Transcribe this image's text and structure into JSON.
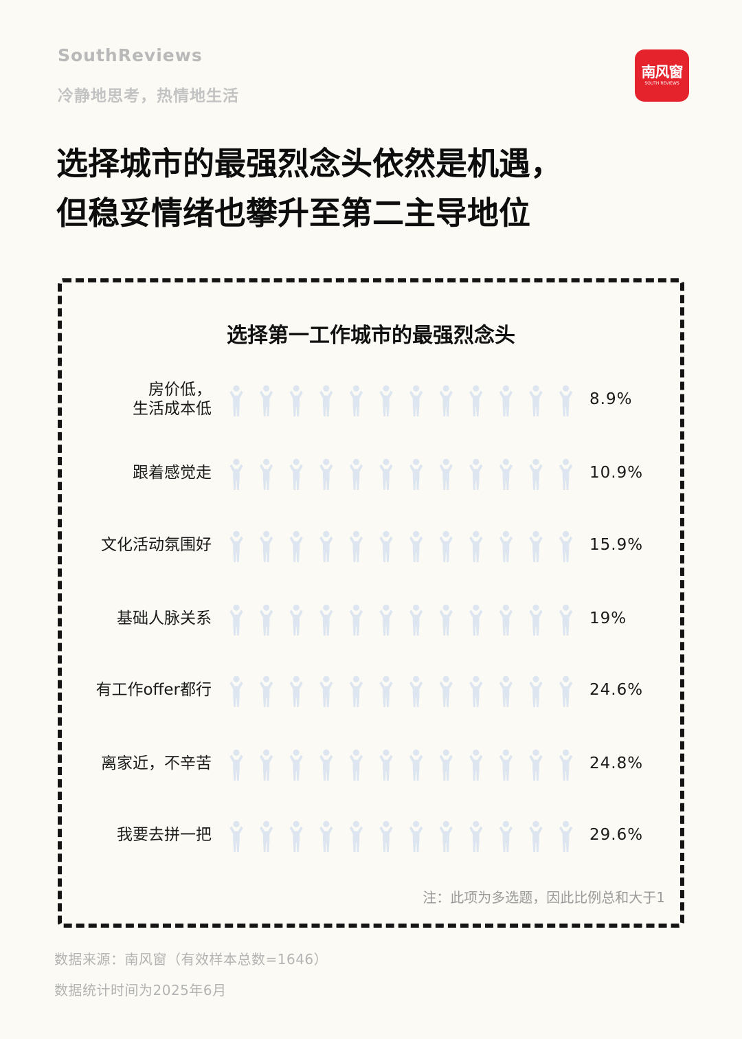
{
  "brand": {
    "name_en": "SouthReviews",
    "slogan": "冷静地思考，热情地生活",
    "logo_cn": "南风窗",
    "logo_en": "SOUTH REVIEWS"
  },
  "headline": {
    "line1": "选择城市的最强烈念头依然是机遇，",
    "line2": "但稳妥情绪也攀升至第二主导地位"
  },
  "chart_data": {
    "type": "pictogram",
    "title": "选择第一工作城市的最强烈念头",
    "icons_total": 12,
    "scale_max_percent": 30,
    "empty_color": "#dde6f0",
    "categories": [
      {
        "label_lines": [
          "房价低，",
          "生活成本低"
        ],
        "value": 8.9,
        "value_label": "8.9%",
        "color": "#ec5a5f"
      },
      {
        "label_lines": [
          "跟着感觉走"
        ],
        "value": 10.9,
        "value_label": "10.9%",
        "color": "#f4d53e"
      },
      {
        "label_lines": [
          "文化活动氛围好"
        ],
        "value": 15.9,
        "value_label": "15.9%",
        "color": "#7cc55a"
      },
      {
        "label_lines": [
          "基础人脉关系"
        ],
        "value": 19,
        "value_label": "19%",
        "color": "#f1b70f"
      },
      {
        "label_lines": [
          "有工作offer都行"
        ],
        "value": 24.6,
        "value_label": "24.6%",
        "color": "#4e8fe8"
      },
      {
        "label_lines": [
          "离家近，不辛苦"
        ],
        "value": 24.8,
        "value_label": "24.8%",
        "color": "#4fcfd8"
      },
      {
        "label_lines": [
          "我要去拼一把"
        ],
        "value": 29.6,
        "value_label": "29.6%",
        "color": "#bb9be6"
      }
    ]
  },
  "note": "注：此项为多选题，因此比例总和大于1",
  "source": {
    "line1": "数据来源：南风窗（有效样本总数=1646）",
    "line2": "数据统计时间为2025年6月"
  }
}
